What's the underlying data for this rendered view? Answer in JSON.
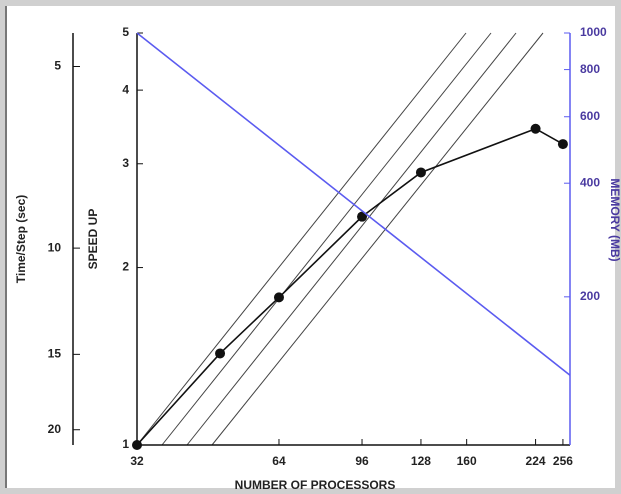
{
  "chart_data": {
    "type": "line",
    "xlabel": "NUMBER OF PROCESSORS",
    "ylabel": "SPEED UP",
    "y2label": "MEMORY (MB)",
    "y3label": "Time/Step (sec)",
    "xlog": true,
    "ylog": true,
    "y2log": true,
    "y3log": true,
    "xlim": [
      32,
      265
    ],
    "xticks": [
      32,
      64,
      96,
      128,
      160,
      224,
      256
    ],
    "ylim": [
      1,
      5
    ],
    "yticks": [
      1,
      2,
      3,
      4,
      5
    ],
    "y2lim": [
      81,
      1000
    ],
    "y2ticks": [
      200,
      400,
      600,
      800,
      1000
    ],
    "y2color": "#4a3aa0",
    "y3lim": [
      21.2,
      4.4
    ],
    "y3ticks": [
      5,
      10,
      15,
      20
    ],
    "series": [
      {
        "color": "#111111",
        "marker": "circle",
        "x": [
          32,
          48,
          64,
          96,
          128,
          224,
          256
        ],
        "values": [
          1,
          1.43,
          1.78,
          2.44,
          2.9,
          3.44,
          3.24
        ]
      },
      {
        "color": "#5b5bf0",
        "axis": "y2",
        "x": [
          32,
          265
        ],
        "values": [
          1000,
          124
        ]
      }
    ]
  }
}
